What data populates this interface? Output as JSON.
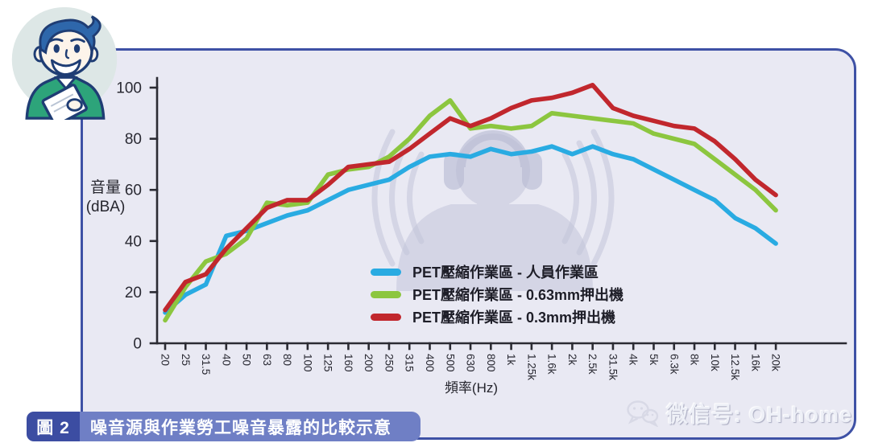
{
  "figure": {
    "badge": "圖 2",
    "caption": "噪音源與作業勞工噪音暴露的比較示意"
  },
  "watermark": {
    "icon": "wechat-icon",
    "text": "微信号: OH-home"
  },
  "colors": {
    "panel_background": "#e9e9f3",
    "panel_border": "#3e51a5",
    "caption_badge_bg": "#3c4da2",
    "caption_bar_bg": "#6f7fc5",
    "axis": "#2b2b33",
    "watermark_figure": "#c3c5da"
  },
  "chart_data": {
    "type": "line",
    "title": "",
    "xlabel": "頻率(Hz)",
    "ylabel": "音量 (dBA)",
    "ylabel_lines": [
      "音量",
      "(dBA)"
    ],
    "ylim": [
      0,
      100
    ],
    "yticks": [
      0,
      20,
      40,
      60,
      80,
      100
    ],
    "grid": false,
    "legend_position": "inside-bottom-center",
    "categories": [
      "20",
      "25",
      "31.5",
      "40",
      "50",
      "63",
      "80",
      "100",
      "125",
      "160",
      "200",
      "250",
      "315",
      "400",
      "500",
      "630",
      "800",
      "1k",
      "1.25k",
      "1.6k",
      "2k",
      "2.5k",
      "31.5k",
      "4k",
      "5k",
      "6.3k",
      "8k",
      "10k",
      "12.5k",
      "16k",
      "20k"
    ],
    "series": [
      {
        "name": "PET壓縮作業區 - 人員作業區",
        "color": "#29abe2",
        "values": [
          12,
          19,
          23,
          42,
          44,
          47,
          50,
          52,
          56,
          60,
          62,
          64,
          69,
          73,
          74,
          73,
          76,
          74,
          75,
          77,
          74,
          77,
          74,
          72,
          68,
          64,
          60,
          56,
          49,
          45,
          39
        ]
      },
      {
        "name": "PET壓縮作業區 - 0.63mm押出機",
        "color": "#8cc63f",
        "values": [
          9,
          22,
          32,
          35,
          41,
          55,
          54,
          55,
          66,
          68,
          69,
          73,
          80,
          89,
          95,
          84,
          85,
          84,
          85,
          90,
          89,
          88,
          87,
          86,
          82,
          80,
          78,
          72,
          66,
          60,
          52
        ]
      },
      {
        "name": "PET壓縮作業區 - 0.3mm押出機",
        "color": "#c1272d",
        "values": [
          13,
          24,
          27,
          37,
          45,
          53,
          56,
          56,
          62,
          69,
          70,
          71,
          76,
          82,
          88,
          85,
          88,
          92,
          95,
          96,
          98,
          101,
          92,
          89,
          87,
          85,
          84,
          79,
          72,
          64,
          58
        ]
      }
    ]
  }
}
